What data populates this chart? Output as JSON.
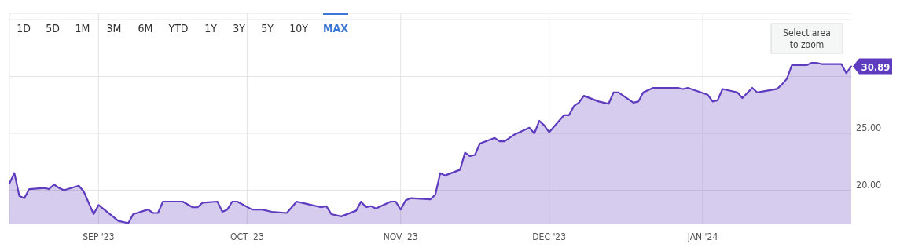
{
  "chart_data": {
    "type": "area",
    "x": [
      "2023-08-14",
      "2023-08-15",
      "2023-08-16",
      "2023-08-17",
      "2023-08-18",
      "2023-08-21",
      "2023-08-22",
      "2023-08-23",
      "2023-08-24",
      "2023-08-25",
      "2023-08-28",
      "2023-08-29",
      "2023-08-31",
      "2023-09-01",
      "2023-09-05",
      "2023-09-07",
      "2023-09-08",
      "2023-09-11",
      "2023-09-12",
      "2023-09-13",
      "2023-09-14",
      "2023-09-18",
      "2023-09-20",
      "2023-09-21",
      "2023-09-22",
      "2023-09-25",
      "2023-09-26",
      "2023-09-27",
      "2023-09-28",
      "2023-09-29",
      "2023-10-02",
      "2023-10-04",
      "2023-10-06",
      "2023-10-09",
      "2023-10-11",
      "2023-10-13",
      "2023-10-16",
      "2023-10-17",
      "2023-10-18",
      "2023-10-20",
      "2023-10-23",
      "2023-10-24",
      "2023-10-25",
      "2023-10-26",
      "2023-10-27",
      "2023-10-30",
      "2023-10-31",
      "2023-11-01",
      "2023-11-02",
      "2023-11-03",
      "2023-11-07",
      "2023-11-08",
      "2023-11-09",
      "2023-11-10",
      "2023-11-13",
      "2023-11-14",
      "2023-11-15",
      "2023-11-16",
      "2023-11-17",
      "2023-11-20",
      "2023-11-21",
      "2023-11-22",
      "2023-11-24",
      "2023-11-27",
      "2023-11-28",
      "2023-11-29",
      "2023-11-30",
      "2023-12-01",
      "2023-12-04",
      "2023-12-05",
      "2023-12-06",
      "2023-12-07",
      "2023-12-08",
      "2023-12-11",
      "2023-12-12",
      "2023-12-13",
      "2023-12-14",
      "2023-12-15",
      "2023-12-18",
      "2023-12-19",
      "2023-12-20",
      "2023-12-22",
      "2023-12-24",
      "2023-12-27",
      "2023-12-28",
      "2023-12-29",
      "2024-01-02",
      "2024-01-03",
      "2024-01-04",
      "2024-01-05",
      "2024-01-08",
      "2024-01-09",
      "2024-01-11",
      "2024-01-12",
      "2024-01-16",
      "2024-01-17",
      "2024-01-18",
      "2024-01-19",
      "2024-01-22",
      "2024-01-23",
      "2024-01-24",
      "2024-01-25",
      "2024-01-26",
      "2024-01-29",
      "2024-01-30",
      "2024-01-31"
    ],
    "series": [
      {
        "color": "#5e3bbf",
        "values": [
          20.6,
          21.5,
          19.5,
          19.3,
          20.1,
          20.2,
          20.1,
          20.5,
          20.2,
          20.0,
          20.4,
          19.9,
          17.9,
          18.7,
          17.3,
          17.1,
          17.9,
          18.3,
          18.0,
          18.0,
          19.0,
          19.0,
          18.5,
          18.5,
          18.9,
          19.0,
          18.1,
          18.3,
          19.0,
          19.0,
          18.3,
          18.3,
          18.1,
          18.0,
          19.0,
          18.8,
          18.5,
          18.6,
          17.9,
          17.7,
          18.2,
          19.0,
          18.5,
          18.6,
          18.4,
          19.0,
          19.0,
          18.3,
          19.1,
          19.3,
          19.2,
          19.6,
          21.5,
          21.3,
          21.8,
          23.3,
          23.0,
          23.1,
          24.1,
          24.6,
          24.3,
          24.3,
          24.9,
          25.5,
          25.0,
          26.1,
          25.7,
          25.1,
          26.6,
          26.6,
          27.4,
          27.7,
          28.3,
          27.8,
          27.7,
          27.6,
          28.6,
          28.6,
          27.7,
          27.8,
          28.6,
          29.0,
          29.0,
          29.0,
          28.9,
          29.0,
          28.4,
          27.8,
          27.9,
          28.9,
          28.6,
          28.1,
          29.0,
          28.6,
          28.9,
          29.3,
          29.8,
          31.0,
          31.0,
          31.2,
          31.2,
          31.1,
          31.1,
          31.1,
          30.3,
          30.89
        ]
      }
    ],
    "xlim": [
      "2023-08-14",
      "2024-01-31"
    ],
    "xticks": [
      {
        "value": "2023-09-01",
        "label": "SEP '23"
      },
      {
        "value": "2023-10-01",
        "label": "OCT '23"
      },
      {
        "value": "2023-11-01",
        "label": "NOV '23"
      },
      {
        "value": "2023-12-01",
        "label": "DEC '23"
      },
      {
        "value": "2024-01-01",
        "label": "JAN '24"
      }
    ],
    "ylim": [
      17,
      35
    ],
    "yticks": [
      {
        "value": 20,
        "label": "20.00"
      },
      {
        "value": 25,
        "label": "25.00"
      },
      {
        "value": 30,
        "label": null
      }
    ],
    "grid": true,
    "annotations": [
      "1D",
      "5D",
      "1M",
      "3M",
      "6M",
      "YTD",
      "1Y",
      "3Y",
      "5Y",
      "10Y",
      "MAX",
      "Select area to zoom",
      {
        "text": "30.89",
        "x": "2024-01-31",
        "y": 30.89
      }
    ]
  }
}
